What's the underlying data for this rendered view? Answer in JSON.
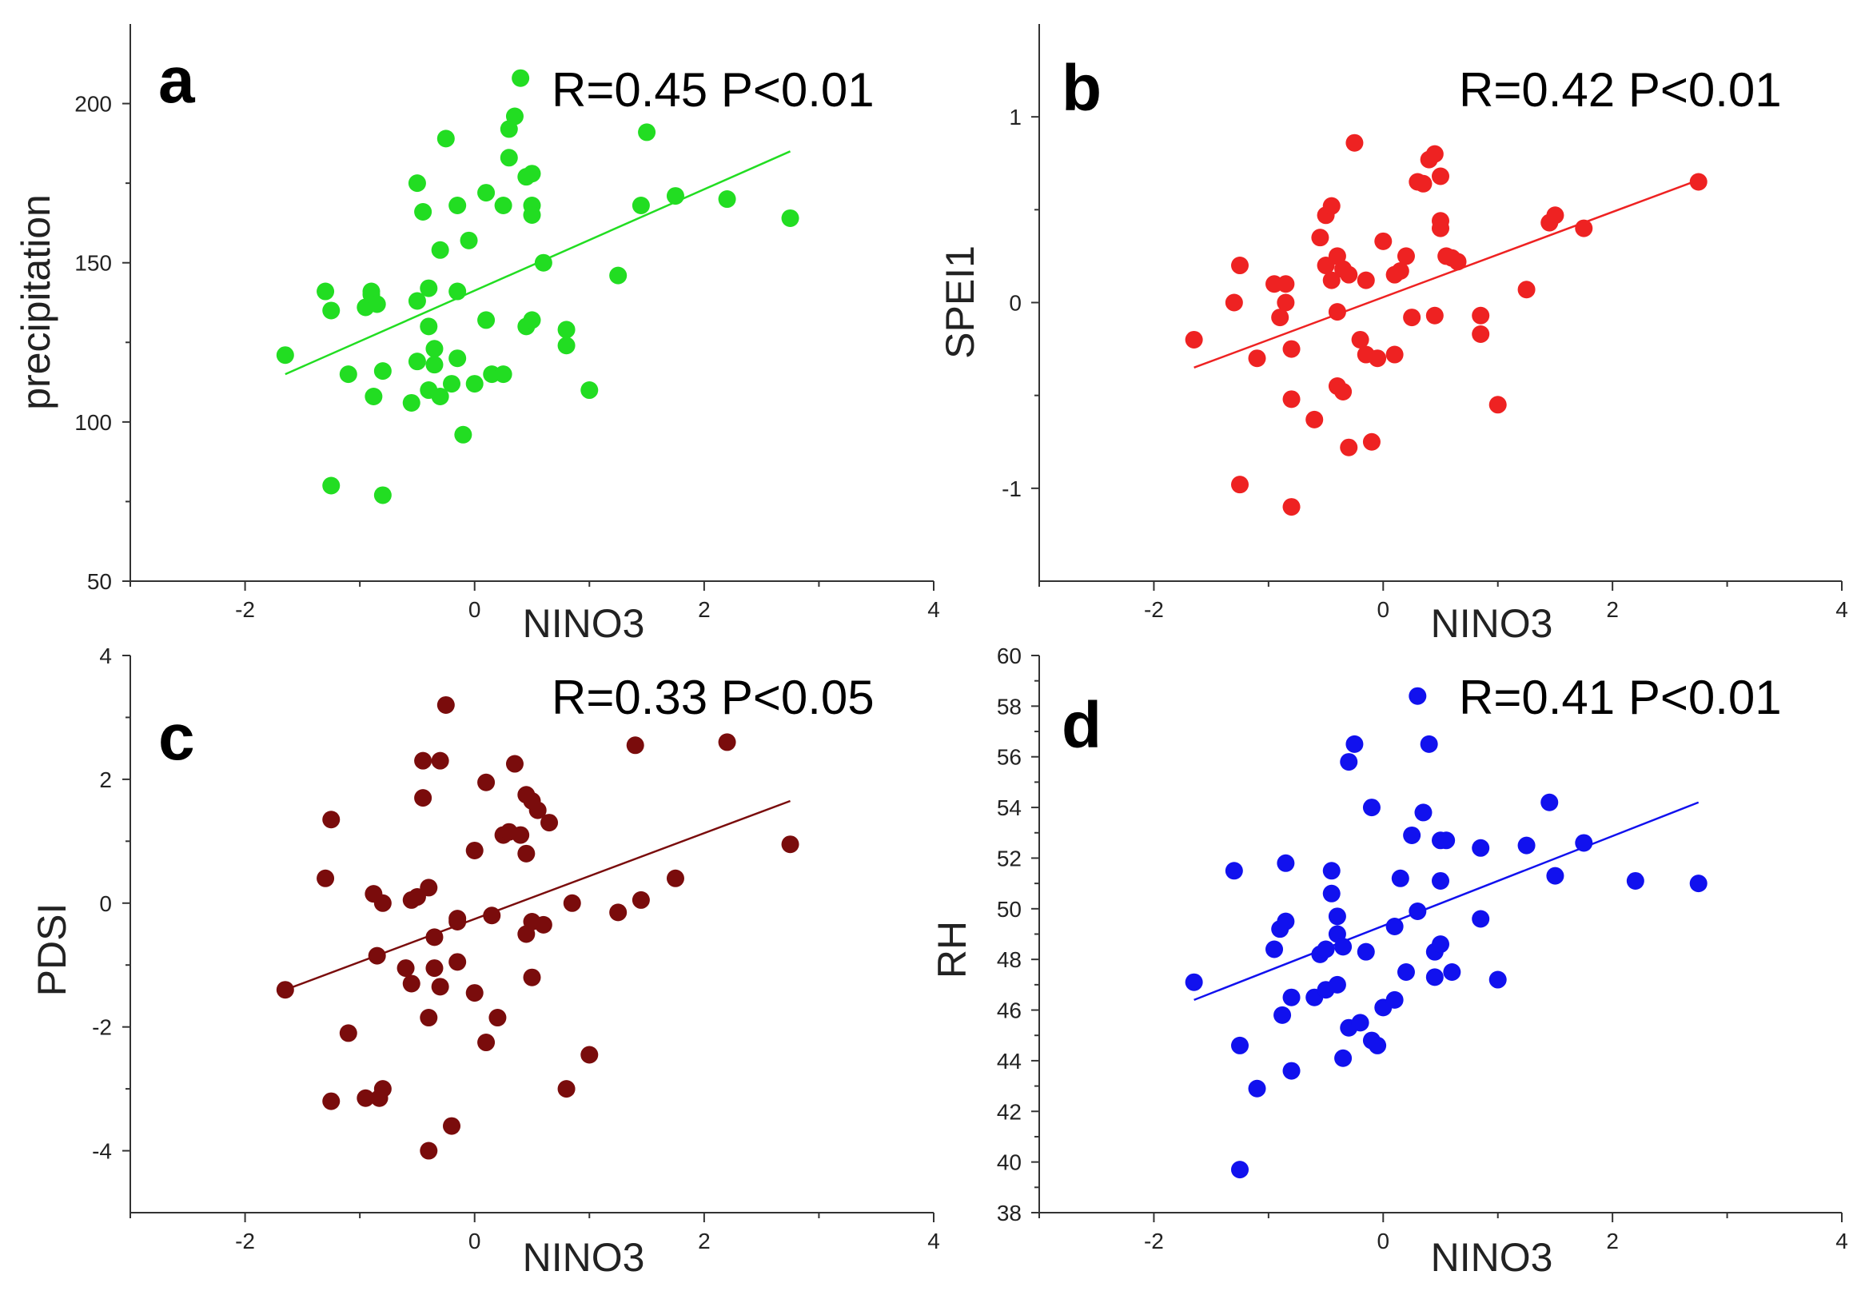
{
  "chart_data": [
    {
      "type": "scatter",
      "panel_label": "a",
      "annotation": "R=0.45 P<0.01",
      "xlabel": "NINO3",
      "ylabel": "precipitation",
      "xlim": [
        -3,
        4
      ],
      "ylim": [
        50,
        225
      ],
      "xticks": [
        -2,
        0,
        2,
        4
      ],
      "yticks": [
        50,
        100,
        150,
        200
      ],
      "color": "#22dd22",
      "grid": false,
      "fit": {
        "x": [
          -1.65,
          2.75
        ],
        "y": [
          115,
          185
        ]
      },
      "x": [
        -1.65,
        -1.3,
        -1.25,
        -1.25,
        -1.1,
        -0.95,
        -0.9,
        -0.9,
        -0.88,
        -0.85,
        -0.8,
        -0.8,
        -0.55,
        -0.5,
        -0.5,
        -0.5,
        -0.45,
        -0.4,
        -0.4,
        -0.4,
        -0.35,
        -0.35,
        -0.3,
        -0.3,
        -0.25,
        -0.2,
        -0.15,
        -0.15,
        -0.15,
        -0.1,
        -0.05,
        0.0,
        0.1,
        0.1,
        0.15,
        0.25,
        0.25,
        0.3,
        0.3,
        0.35,
        0.4,
        0.45,
        0.45,
        0.5,
        0.5,
        0.5,
        0.5,
        0.6,
        0.8,
        0.8,
        1.0,
        1.25,
        1.45,
        1.5,
        1.75,
        2.2,
        2.75
      ],
      "y": [
        121,
        141,
        135,
        80,
        115,
        136,
        141,
        140,
        108,
        137,
        116,
        77,
        106,
        175,
        138,
        119,
        166,
        142,
        130,
        110,
        123,
        118,
        154,
        108,
        189,
        112,
        120,
        141,
        168,
        96,
        157,
        112,
        172,
        132,
        115,
        115,
        168,
        192,
        183,
        196,
        208,
        177,
        130,
        168,
        165,
        178,
        132,
        150,
        124,
        129,
        110,
        146,
        168,
        191,
        171,
        170,
        164
      ]
    },
    {
      "type": "scatter",
      "panel_label": "b",
      "annotation": "R=0.42 P<0.01",
      "xlabel": "NINO3",
      "ylabel": "SPEI1",
      "xlim": [
        -3,
        4
      ],
      "ylim": [
        -1.5,
        1.5
      ],
      "xticks": [
        -2,
        0,
        2,
        4
      ],
      "yticks": [
        -1,
        0,
        1
      ],
      "color": "#ee2222",
      "grid": false,
      "fit": {
        "x": [
          -1.65,
          2.75
        ],
        "y": [
          -0.35,
          0.66
        ]
      },
      "x": [
        -1.65,
        -1.3,
        -1.25,
        -1.25,
        -1.1,
        -0.95,
        -0.9,
        -0.85,
        -0.85,
        -0.8,
        -0.8,
        -0.8,
        -0.6,
        -0.55,
        -0.5,
        -0.5,
        -0.45,
        -0.45,
        -0.4,
        -0.4,
        -0.4,
        -0.35,
        -0.35,
        -0.3,
        -0.3,
        -0.25,
        -0.2,
        -0.15,
        -0.15,
        -0.1,
        -0.05,
        0.0,
        0.1,
        0.1,
        0.15,
        0.2,
        0.25,
        0.3,
        0.35,
        0.4,
        0.45,
        0.45,
        0.5,
        0.5,
        0.5,
        0.55,
        0.6,
        0.65,
        0.85,
        0.85,
        1.0,
        1.25,
        1.45,
        1.5,
        1.75,
        2.75
      ],
      "y": [
        -0.2,
        0.0,
        0.2,
        -0.98,
        -0.3,
        0.1,
        -0.08,
        0.1,
        0.0,
        -0.25,
        -1.1,
        -0.52,
        -0.63,
        0.35,
        0.2,
        0.47,
        0.52,
        0.12,
        0.25,
        -0.05,
        -0.45,
        -0.48,
        0.18,
        0.15,
        -0.78,
        0.86,
        -0.2,
        0.12,
        -0.28,
        -0.75,
        -0.3,
        0.33,
        0.15,
        -0.28,
        0.17,
        0.25,
        -0.08,
        0.65,
        0.64,
        0.77,
        0.8,
        -0.07,
        0.44,
        0.4,
        0.68,
        0.25,
        0.24,
        0.22,
        -0.07,
        -0.17,
        -0.55,
        0.07,
        0.43,
        0.47,
        0.4,
        0.65
      ]
    },
    {
      "type": "scatter",
      "panel_label": "c",
      "annotation": "R=0.33 P<0.05",
      "xlabel": "NINO3",
      "ylabel": "PDSI",
      "xlim": [
        -3,
        4
      ],
      "ylim": [
        -5,
        4
      ],
      "xticks": [
        -2,
        0,
        2,
        4
      ],
      "yticks": [
        -4,
        -2,
        0,
        2,
        4
      ],
      "color": "#7a0c0c",
      "grid": false,
      "fit": {
        "x": [
          -1.65,
          2.75
        ],
        "y": [
          -1.4,
          1.65
        ]
      },
      "x": [
        -1.65,
        -1.3,
        -1.25,
        -1.25,
        -1.1,
        -0.95,
        -0.88,
        -0.85,
        -0.83,
        -0.8,
        -0.8,
        -0.6,
        -0.55,
        -0.55,
        -0.5,
        -0.45,
        -0.45,
        -0.4,
        -0.4,
        -0.4,
        -0.35,
        -0.35,
        -0.3,
        -0.3,
        -0.25,
        -0.2,
        -0.15,
        -0.15,
        -0.15,
        0.0,
        0.0,
        0.1,
        0.1,
        0.15,
        0.2,
        0.25,
        0.3,
        0.35,
        0.4,
        0.45,
        0.45,
        0.45,
        0.5,
        0.5,
        0.5,
        0.55,
        0.6,
        0.65,
        0.8,
        0.85,
        1.0,
        1.25,
        1.4,
        1.45,
        1.75,
        2.2,
        2.75
      ],
      "y": [
        -1.4,
        0.4,
        1.35,
        -3.2,
        -2.1,
        -3.15,
        0.15,
        -0.85,
        -3.15,
        -3.0,
        0.0,
        -1.05,
        0.05,
        -1.3,
        0.1,
        2.3,
        1.7,
        0.25,
        -1.85,
        -4.0,
        -0.55,
        -1.05,
        2.3,
        -1.35,
        3.2,
        -3.6,
        -0.95,
        -0.3,
        -0.25,
        0.85,
        -1.45,
        -2.25,
        1.95,
        -0.2,
        -1.85,
        1.1,
        1.15,
        2.25,
        1.1,
        1.75,
        0.8,
        -0.5,
        1.65,
        -0.3,
        -1.2,
        1.5,
        -0.35,
        1.3,
        -3.0,
        0.0,
        -2.45,
        -0.15,
        2.55,
        0.05,
        0.4,
        2.6,
        0.95
      ]
    },
    {
      "type": "scatter",
      "panel_label": "d",
      "annotation": "R=0.41 P<0.01",
      "xlabel": "NINO3",
      "ylabel": "RH",
      "xlim": [
        -3,
        4
      ],
      "ylim": [
        38,
        60
      ],
      "xticks": [
        -2,
        0,
        2,
        4
      ],
      "yticks": [
        38,
        40,
        42,
        44,
        46,
        48,
        50,
        52,
        54,
        56,
        58,
        60
      ],
      "color": "#1111ee",
      "grid": false,
      "fit": {
        "x": [
          -1.65,
          2.75
        ],
        "y": [
          46.4,
          54.2
        ]
      },
      "x": [
        -1.65,
        -1.3,
        -1.25,
        -1.25,
        -1.1,
        -0.95,
        -0.9,
        -0.88,
        -0.85,
        -0.85,
        -0.8,
        -0.8,
        -0.6,
        -0.55,
        -0.5,
        -0.5,
        -0.45,
        -0.45,
        -0.4,
        -0.4,
        -0.4,
        -0.35,
        -0.35,
        -0.3,
        -0.3,
        -0.25,
        -0.2,
        -0.15,
        -0.1,
        -0.1,
        -0.05,
        0.0,
        0.1,
        0.1,
        0.15,
        0.2,
        0.25,
        0.3,
        0.3,
        0.35,
        0.4,
        0.45,
        0.45,
        0.5,
        0.5,
        0.5,
        0.55,
        0.6,
        0.85,
        0.85,
        1.0,
        1.25,
        1.45,
        1.5,
        1.75,
        2.2,
        2.75
      ],
      "y": [
        47.1,
        51.5,
        44.6,
        39.7,
        42.9,
        48.4,
        49.2,
        45.8,
        49.5,
        51.8,
        43.6,
        46.5,
        46.5,
        48.2,
        48.4,
        46.8,
        51.5,
        50.6,
        49.7,
        47.0,
        49.0,
        44.1,
        48.5,
        55.8,
        45.3,
        56.5,
        45.5,
        48.3,
        54.0,
        44.8,
        44.6,
        46.1,
        46.4,
        49.3,
        51.2,
        47.5,
        52.9,
        49.9,
        58.4,
        53.8,
        56.5,
        47.3,
        48.3,
        48.6,
        51.1,
        52.7,
        52.7,
        47.5,
        49.6,
        52.4,
        47.2,
        52.5,
        54.2,
        51.3,
        52.6,
        51.1,
        51.0
      ]
    }
  ]
}
